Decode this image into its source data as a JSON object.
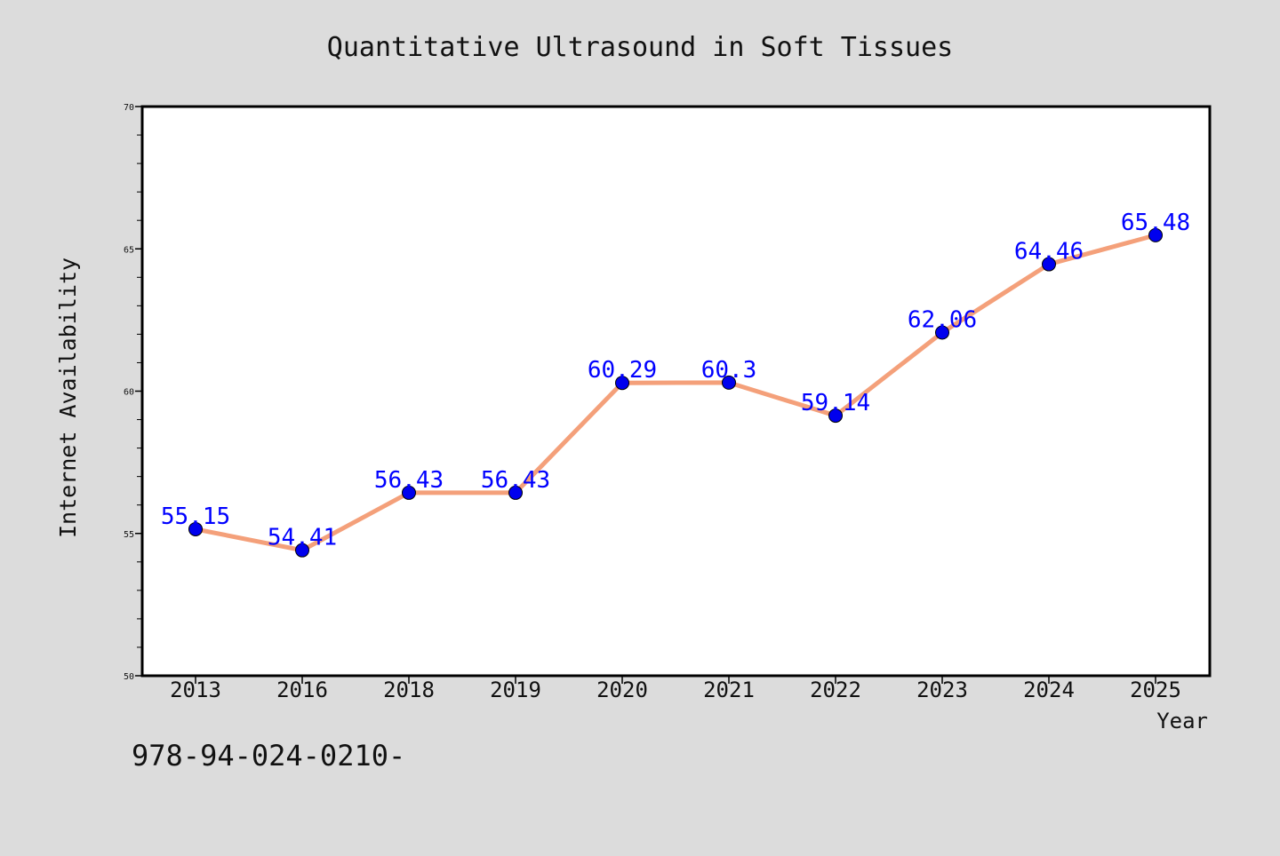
{
  "chart_data": {
    "type": "line",
    "title": "Quantitative Ultrasound in Soft Tissues",
    "xlabel": "Year",
    "ylabel": "Internet Availability",
    "categories": [
      "2013",
      "2016",
      "2018",
      "2019",
      "2020",
      "2021",
      "2022",
      "2023",
      "2024",
      "2025"
    ],
    "series": [
      {
        "values": [
          55.15,
          54.41,
          56.43,
          56.43,
          60.29,
          60.3,
          59.14,
          62.06,
          64.46,
          65.48
        ],
        "labels": [
          "55.15",
          "54.41",
          "56.43",
          "56.43",
          "60.29",
          "60.3",
          "59.14",
          "62.06",
          "64.46",
          "65.48"
        ]
      }
    ],
    "ylim": [
      50,
      70
    ],
    "yticks": [
      "50",
      "55",
      "60",
      "65",
      "70"
    ],
    "grid": false,
    "colors": {
      "line": "#f4a07a",
      "marker": "#0000ee",
      "label": "#0000ff",
      "background": "#dcdcdc",
      "plot": "#ffffff"
    }
  },
  "footer": {
    "text": "978-94-024-0210-"
  }
}
